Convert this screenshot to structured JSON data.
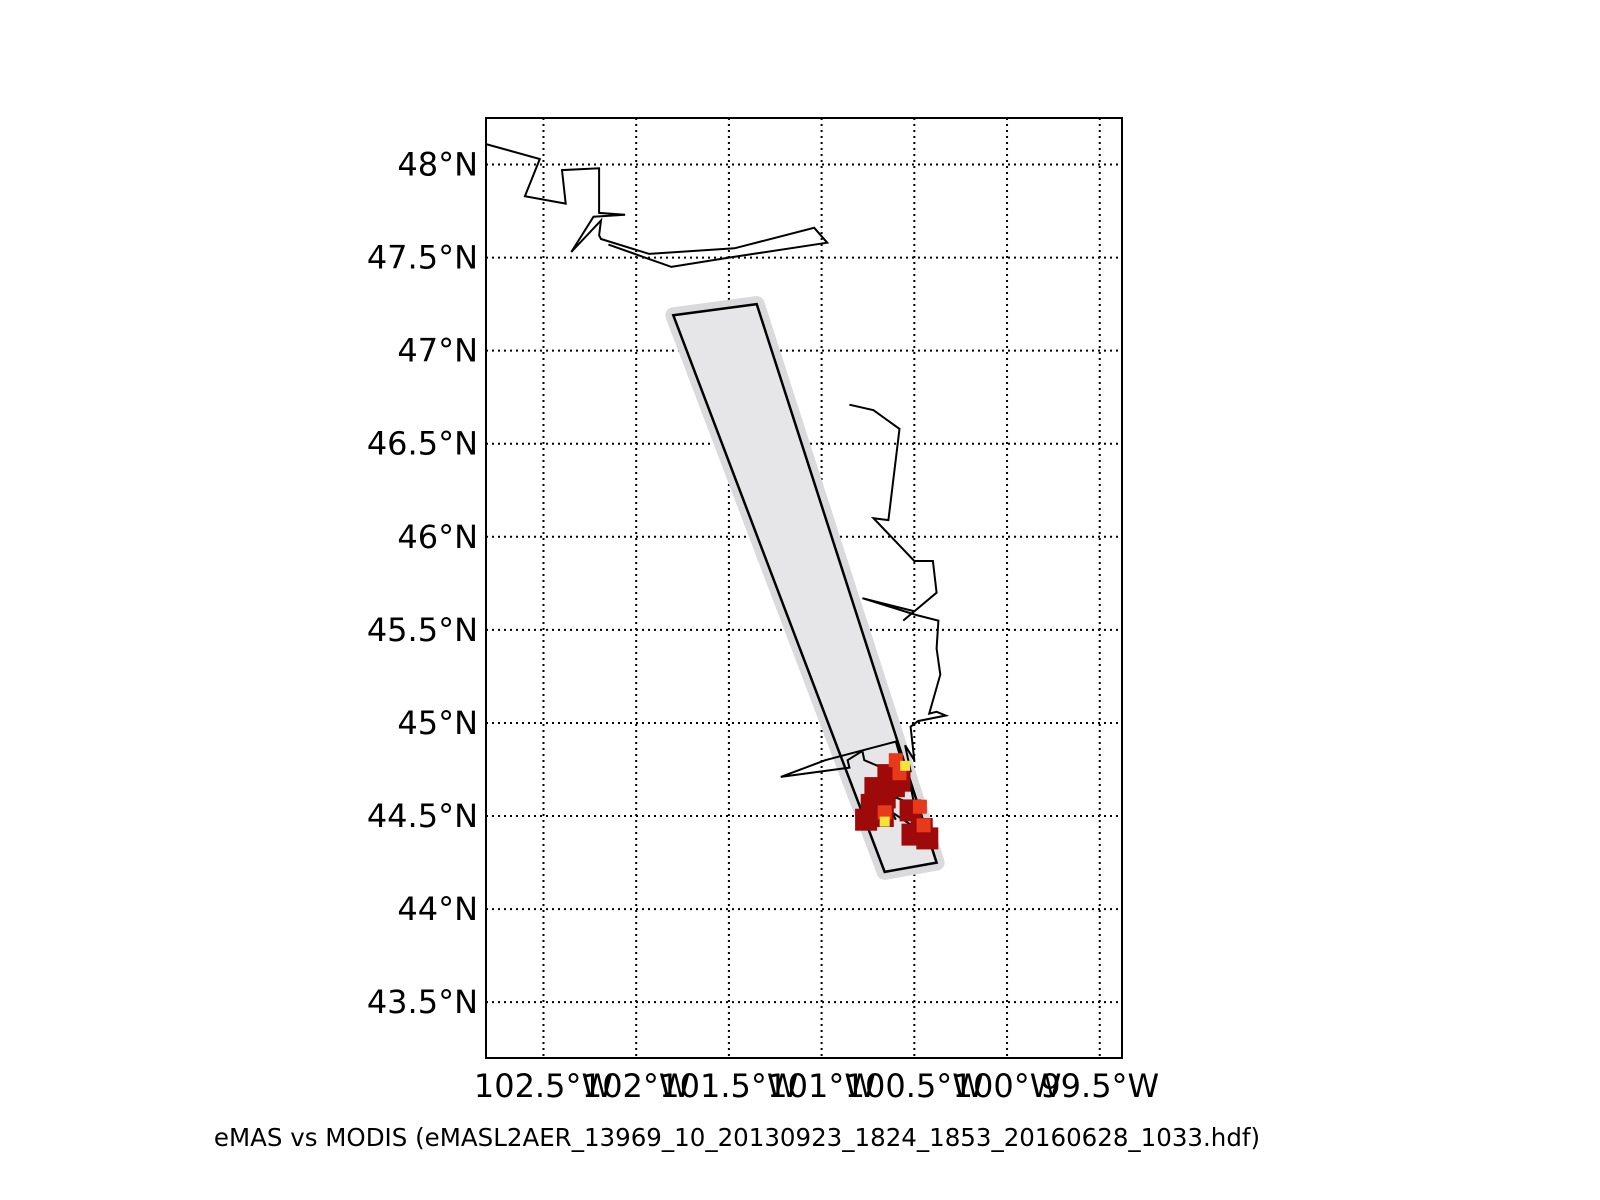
{
  "figure": {
    "caption": "eMAS vs MODIS (eMASL2AER_13969_10_20130923_1824_1853_20160628_1033.hdf)"
  },
  "map": {
    "lon_range": [
      -102.81,
      -99.38
    ],
    "lat_range": [
      43.2,
      48.25
    ],
    "grid": true,
    "lat_ticks": [
      {
        "value": 48.0,
        "label": "48°N"
      },
      {
        "value": 47.5,
        "label": "47.5°N"
      },
      {
        "value": 47.0,
        "label": "47°N"
      },
      {
        "value": 46.5,
        "label": "46.5°N"
      },
      {
        "value": 46.0,
        "label": "46°N"
      },
      {
        "value": 45.5,
        "label": "45.5°N"
      },
      {
        "value": 45.0,
        "label": "45°N"
      },
      {
        "value": 44.5,
        "label": "44.5°N"
      },
      {
        "value": 44.0,
        "label": "44°N"
      },
      {
        "value": 43.5,
        "label": "43.5°N"
      }
    ],
    "lon_ticks": [
      {
        "value": -102.5,
        "label": "102.5°W"
      },
      {
        "value": -102.0,
        "label": "102°W"
      },
      {
        "value": -101.5,
        "label": "101.5°W"
      },
      {
        "value": -101.0,
        "label": "101°W"
      },
      {
        "value": -100.5,
        "label": "100.5°W"
      },
      {
        "value": -100.0,
        "label": "100°W"
      },
      {
        "value": -99.5,
        "label": "99.5°W"
      }
    ],
    "swath": {
      "fill_color": "#e6e6e8",
      "outline_color": "#000000",
      "corners": [
        [
          -101.8,
          47.19
        ],
        [
          -101.35,
          47.25
        ],
        [
          -100.38,
          44.25
        ],
        [
          -100.66,
          44.2
        ]
      ]
    },
    "river_lines": [
      {
        "name": "upper",
        "points": [
          [
            -102.81,
            48.11
          ],
          [
            -102.52,
            48.03
          ],
          [
            -102.6,
            47.83
          ],
          [
            -102.38,
            47.79
          ],
          [
            -102.4,
            47.97
          ],
          [
            -102.2,
            47.98
          ],
          [
            -102.2,
            47.74
          ],
          [
            -102.06,
            47.73
          ],
          [
            -102.23,
            47.72
          ],
          [
            -102.35,
            47.53
          ],
          [
            -102.19,
            47.7
          ],
          [
            -102.2,
            47.62
          ],
          [
            -102.19,
            47.6
          ],
          [
            -101.93,
            47.52
          ],
          [
            -101.47,
            47.55
          ],
          [
            -101.04,
            47.66
          ],
          [
            -100.97,
            47.58
          ],
          [
            -101.5,
            47.5
          ],
          [
            -101.81,
            47.45
          ],
          [
            -102.15,
            47.57
          ]
        ]
      },
      {
        "name": "lower",
        "points": [
          [
            -100.85,
            46.71
          ],
          [
            -100.72,
            46.68
          ],
          [
            -100.58,
            46.58
          ],
          [
            -100.64,
            46.09
          ],
          [
            -100.72,
            46.1
          ],
          [
            -100.5,
            45.87
          ],
          [
            -100.4,
            45.87
          ],
          [
            -100.38,
            45.7
          ],
          [
            -100.56,
            45.55
          ],
          [
            -100.5,
            45.6
          ],
          [
            -100.78,
            45.67
          ],
          [
            -100.49,
            45.58
          ],
          [
            -100.37,
            45.55
          ],
          [
            -100.38,
            45.4
          ],
          [
            -100.36,
            45.26
          ],
          [
            -100.42,
            45.05
          ],
          [
            -100.38,
            45.06
          ],
          [
            -100.33,
            45.04
          ],
          [
            -100.48,
            45.01
          ],
          [
            -100.52,
            44.98
          ],
          [
            -100.5,
            44.8
          ],
          [
            -100.55,
            44.88
          ],
          [
            -100.52,
            44.74
          ],
          [
            -100.56,
            44.73
          ],
          [
            -100.58,
            44.72
          ],
          [
            -100.77,
            44.8
          ],
          [
            -100.78,
            44.85
          ],
          [
            -100.86,
            44.8
          ],
          [
            -100.85,
            44.76
          ],
          [
            -101.22,
            44.71
          ],
          [
            -100.98,
            44.8
          ],
          [
            -100.6,
            44.9
          ],
          [
            -100.57,
            44.8
          ],
          [
            -100.62,
            44.65
          ],
          [
            -100.53,
            44.71
          ],
          [
            -100.5,
            44.56
          ],
          [
            -100.6,
            44.6
          ],
          [
            -100.64,
            44.55
          ],
          [
            -100.6,
            44.48
          ],
          [
            -100.62,
            44.52
          ],
          [
            -100.53,
            44.46
          ],
          [
            -100.43,
            44.43
          ],
          [
            -100.38,
            44.4
          ]
        ]
      }
    ],
    "retrieval_patches": [
      {
        "lon": -100.64,
        "lat": 44.72,
        "value": 0.2
      },
      {
        "lon": -100.58,
        "lat": 44.69,
        "value": 0.2
      },
      {
        "lon": -100.61,
        "lat": 44.66,
        "value": 0.2
      },
      {
        "lon": -100.71,
        "lat": 44.65,
        "value": 0.2
      },
      {
        "lon": -100.66,
        "lat": 44.6,
        "value": 0.2
      },
      {
        "lon": -100.73,
        "lat": 44.56,
        "value": 0.2
      },
      {
        "lon": -100.67,
        "lat": 44.5,
        "value": 0.2
      },
      {
        "lon": -100.76,
        "lat": 44.48,
        "value": 0.2
      },
      {
        "lon": -100.52,
        "lat": 44.53,
        "value": 0.2
      },
      {
        "lon": -100.46,
        "lat": 44.43,
        "value": 0.2
      },
      {
        "lon": -100.51,
        "lat": 44.4,
        "value": 0.2
      },
      {
        "lon": -100.43,
        "lat": 44.38,
        "value": 0.2
      },
      {
        "lon": -100.6,
        "lat": 44.8,
        "value": 0.5
      },
      {
        "lon": -100.58,
        "lat": 44.73,
        "value": 0.5
      },
      {
        "lon": -100.66,
        "lat": 44.52,
        "value": 0.5
      },
      {
        "lon": -100.47,
        "lat": 44.55,
        "value": 0.5
      },
      {
        "lon": -100.45,
        "lat": 44.45,
        "value": 0.5
      },
      {
        "lon": -100.66,
        "lat": 44.47,
        "value": 0.8
      },
      {
        "lon": -100.55,
        "lat": 44.77,
        "value": 0.8
      }
    ]
  }
}
